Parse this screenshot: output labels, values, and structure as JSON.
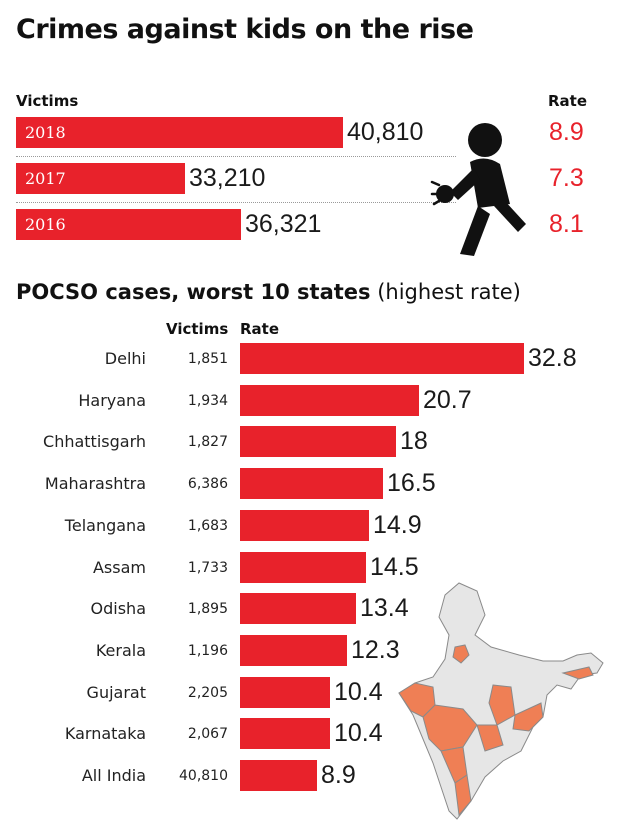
{
  "title": "Crimes against kids on the rise",
  "yearly": {
    "victims_header": "Victims",
    "rate_header": "Rate",
    "rows": [
      {
        "year": "2018",
        "victims_label": "40,810",
        "victims": 40810,
        "rate": "8.9"
      },
      {
        "year": "2017",
        "victims_label": "33,210",
        "victims": 33210,
        "rate": "7.3"
      },
      {
        "year": "2016",
        "victims_label": "36,321",
        "victims": 36321,
        "rate": "8.1"
      }
    ]
  },
  "states": {
    "title_bold": "POCSO cases, worst 10 states",
    "title_rest": " (highest rate)",
    "victims_header": "Victims",
    "rate_header": "Rate",
    "rows": [
      {
        "name": "Delhi",
        "victims": "1,851",
        "rate": "32.8"
      },
      {
        "name": "Haryana",
        "victims": "1,934",
        "rate": "20.7"
      },
      {
        "name": "Chhattisgarh",
        "victims": "1,827",
        "rate": "18"
      },
      {
        "name": "Maharashtra",
        "victims": "6,386",
        "rate": "16.5"
      },
      {
        "name": "Telangana",
        "victims": "1,683",
        "rate": "14.9"
      },
      {
        "name": "Assam",
        "victims": "1,733",
        "rate": "14.5"
      },
      {
        "name": "Odisha",
        "victims": "1,895",
        "rate": "13.4"
      },
      {
        "name": "Kerala",
        "victims": "1,196",
        "rate": "12.3"
      },
      {
        "name": "Gujarat",
        "victims": "2,205",
        "rate": "10.4"
      },
      {
        "name": "Karnataka",
        "victims": "2,067",
        "rate": "10.4"
      },
      {
        "name": "All India",
        "victims": "40,810",
        "rate": "8.9"
      }
    ]
  },
  "colors": {
    "bar": "#e8222b",
    "rate_text": "#e8222b",
    "map_highlight": "#ef7f55",
    "map_base": "#e6e6e6"
  },
  "chart_data": [
    {
      "type": "bar",
      "title": "Crimes against kids on the rise",
      "categories": [
        "2018",
        "2017",
        "2016"
      ],
      "series": [
        {
          "name": "Victims",
          "values": [
            40810,
            33210,
            36321
          ]
        },
        {
          "name": "Rate",
          "values": [
            8.9,
            7.3,
            8.1
          ]
        }
      ],
      "orientation": "horizontal"
    },
    {
      "type": "bar",
      "title": "POCSO cases, worst 10 states (highest rate)",
      "categories": [
        "Delhi",
        "Haryana",
        "Chhattisgarh",
        "Maharashtra",
        "Telangana",
        "Assam",
        "Odisha",
        "Kerala",
        "Gujarat",
        "Karnataka",
        "All India"
      ],
      "series": [
        {
          "name": "Victims",
          "values": [
            1851,
            1934,
            1827,
            6386,
            1683,
            1733,
            1895,
            1196,
            2205,
            2067,
            40810
          ]
        },
        {
          "name": "Rate",
          "values": [
            32.8,
            20.7,
            18,
            16.5,
            14.9,
            14.5,
            13.4,
            12.3,
            10.4,
            10.4,
            8.9
          ]
        }
      ],
      "orientation": "horizontal"
    }
  ]
}
